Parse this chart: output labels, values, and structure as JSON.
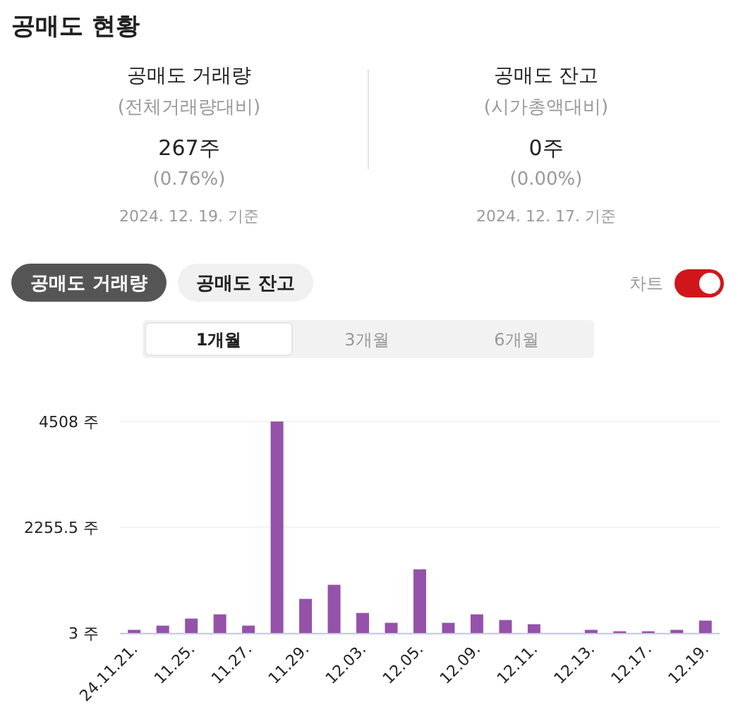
{
  "chart_data": [
    {
      "type": "other",
      "title": "공매도 현황",
      "annotations": [
        "공매도 거래량",
        "(전체거래량대비)",
        "267주",
        "(0.76%)",
        "2024. 12. 19. 기준",
        "공매도 잔고",
        "(시가총액대비)",
        "0주",
        "(0.00%)",
        "2024. 12. 17. 기준",
        "공매도 거래량",
        "공매도 잔고",
        "차트",
        "1개월",
        "3개월",
        "6개월"
      ]
    },
    {
      "type": "bar",
      "categories": [
        "24.11.21.",
        null,
        "11.25.",
        null,
        "11.27.",
        null,
        "11.29.",
        null,
        "12.03.",
        null,
        "12.05.",
        null,
        "12.09.",
        null,
        "12.11.",
        null,
        "12.13.",
        null,
        "12.17.",
        null,
        "12.19."
      ],
      "values": [
        70,
        160,
        310,
        400,
        160,
        4508,
        730,
        1030,
        430,
        220,
        1360,
        220,
        400,
        280,
        190,
        3,
        70,
        40,
        40,
        70,
        267
      ],
      "color": "#9452a9",
      "ylim": [
        3,
        4508
      ],
      "yticks": [
        {
          "value": 3,
          "label": "3 주"
        },
        {
          "value": 2255.5,
          "label": "2255.5 주"
        },
        {
          "value": 4508,
          "label": "4508 주"
        }
      ],
      "grid": "y"
    }
  ]
}
